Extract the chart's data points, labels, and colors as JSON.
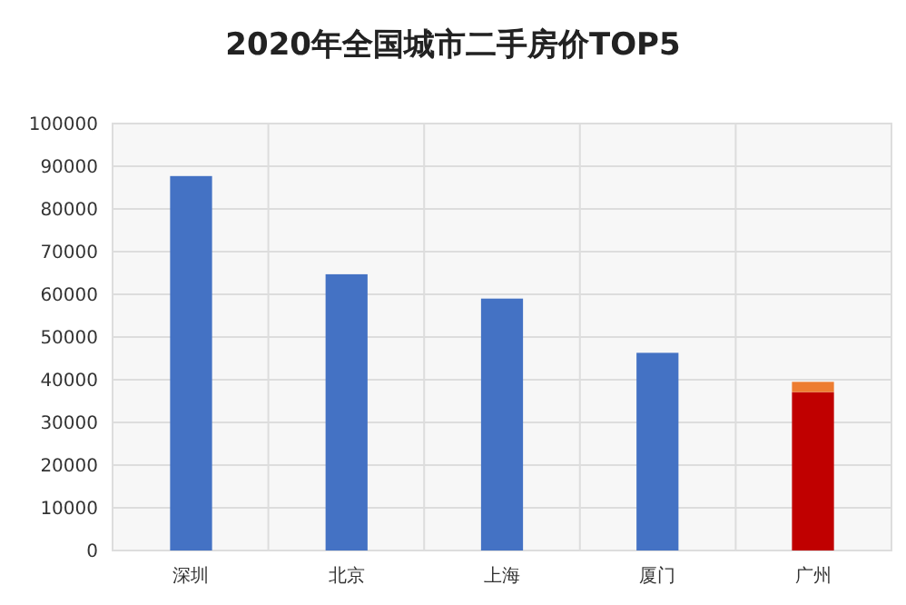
{
  "chart_data": {
    "type": "bar",
    "title": "2020年全国城市二手房价TOP5",
    "categories": [
      "深圳",
      "北京",
      "上海",
      "厦门",
      "广州"
    ],
    "stacked": true,
    "series": [
      {
        "colors": [
          "#4472c4",
          "#4472c4",
          "#4472c4",
          "#4472c4",
          "#c00000"
        ],
        "values": [
          87700,
          64700,
          59000,
          46300,
          37100
        ]
      },
      {
        "color": "#ed7d31",
        "values": [
          null,
          null,
          null,
          null,
          2400
        ]
      }
    ],
    "ylim": [
      0,
      100000
    ],
    "yticks": [
      0,
      10000,
      20000,
      30000,
      40000,
      50000,
      60000,
      70000,
      80000,
      90000,
      100000
    ],
    "grid": true
  }
}
